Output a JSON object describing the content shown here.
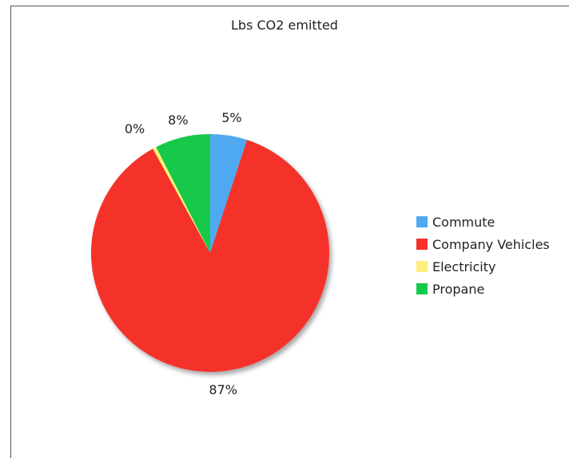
{
  "chart_data": {
    "type": "pie",
    "title": "Lbs CO2 emitted",
    "categories": [
      "Commute",
      "Company Vehicles",
      "Electricity",
      "Propane"
    ],
    "values": [
      5,
      87,
      0.5,
      7.5
    ],
    "data_labels": [
      "5%",
      "87%",
      "0%",
      "8%"
    ],
    "colors": [
      "#4fa9f0",
      "#f5302c",
      "#fbf07a",
      "#14c94a"
    ],
    "legend_position": "right"
  }
}
